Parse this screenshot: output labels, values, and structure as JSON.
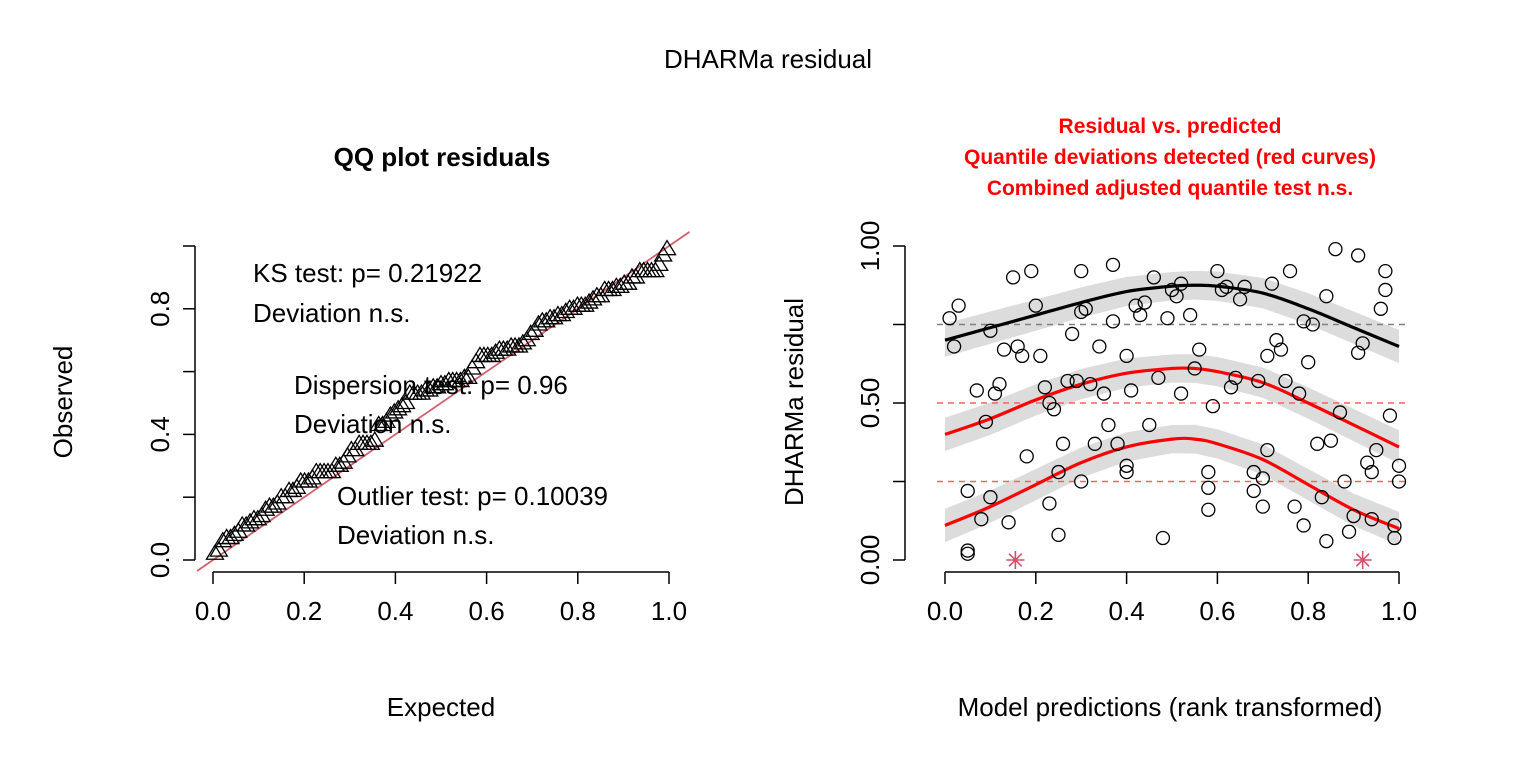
{
  "figure_title": "DHARMa residual",
  "chart_data": [
    {
      "type": "scatter",
      "title": "QQ plot residuals",
      "xlabel": "Expected",
      "ylabel": "Observed",
      "xlim": [
        0,
        1
      ],
      "ylim": [
        0,
        1
      ],
      "x_ticks": [
        "0.0",
        "0.2",
        "0.4",
        "0.6",
        "0.8",
        "1.0"
      ],
      "y_ticks": [
        "0.0",
        "0.4",
        "0.8"
      ],
      "annotations": [
        {
          "line1": "KS test: p= 0.21922",
          "line2": "Deviation  n.s."
        },
        {
          "line1": "Dispersion test: p= 0.96",
          "line2": "Deviation  n.s."
        },
        {
          "line1": "Outlier test: p= 0.10039",
          "line2": "Deviation  n.s."
        }
      ],
      "marker": "triangle",
      "reference_line": {
        "intercept": 0,
        "slope": 1,
        "color": "#d0606e"
      },
      "series_color": "#000000"
    },
    {
      "type": "scatter",
      "title_lines": [
        "Residual vs. predicted",
        "Quantile deviations detected (red curves)",
        "Combined adjusted quantile test n.s."
      ],
      "title_color": "#ff0000",
      "xlabel": "Model predictions (rank transformed)",
      "ylabel": "DHARMa residual",
      "xlim": [
        0,
        1
      ],
      "ylim": [
        0,
        1
      ],
      "x_ticks": [
        "0.0",
        "0.2",
        "0.4",
        "0.6",
        "0.8",
        "1.0"
      ],
      "y_ticks": [
        "0.00",
        "0.50",
        "1.00"
      ],
      "hlines": [
        0.25,
        0.5,
        0.75
      ],
      "points": [
        [
          0.01,
          0.77
        ],
        [
          0.02,
          0.68
        ],
        [
          0.03,
          0.81
        ],
        [
          0.05,
          0.22
        ],
        [
          0.05,
          0.03
        ],
        [
          0.05,
          0.02
        ],
        [
          0.07,
          0.54
        ],
        [
          0.08,
          0.13
        ],
        [
          0.09,
          0.44
        ],
        [
          0.1,
          0.73
        ],
        [
          0.1,
          0.2
        ],
        [
          0.11,
          0.53
        ],
        [
          0.12,
          0.56
        ],
        [
          0.13,
          0.67
        ],
        [
          0.14,
          0.12
        ],
        [
          0.15,
          0.9
        ],
        [
          0.16,
          0.68
        ],
        [
          0.17,
          0.65
        ],
        [
          0.18,
          0.33
        ],
        [
          0.19,
          0.92
        ],
        [
          0.2,
          0.81
        ],
        [
          0.21,
          0.65
        ],
        [
          0.22,
          0.55
        ],
        [
          0.23,
          0.5
        ],
        [
          0.23,
          0.18
        ],
        [
          0.24,
          0.48
        ],
        [
          0.25,
          0.28
        ],
        [
          0.25,
          0.08
        ],
        [
          0.26,
          0.37
        ],
        [
          0.27,
          0.57
        ],
        [
          0.28,
          0.72
        ],
        [
          0.29,
          0.57
        ],
        [
          0.3,
          0.25
        ],
        [
          0.3,
          0.79
        ],
        [
          0.3,
          0.92
        ],
        [
          0.31,
          0.8
        ],
        [
          0.32,
          0.56
        ],
        [
          0.33,
          0.37
        ],
        [
          0.34,
          0.68
        ],
        [
          0.35,
          0.53
        ],
        [
          0.36,
          0.43
        ],
        [
          0.37,
          0.94
        ],
        [
          0.37,
          0.76
        ],
        [
          0.38,
          0.37
        ],
        [
          0.4,
          0.3
        ],
        [
          0.4,
          0.28
        ],
        [
          0.4,
          0.65
        ],
        [
          0.41,
          0.54
        ],
        [
          0.42,
          0.81
        ],
        [
          0.43,
          0.78
        ],
        [
          0.44,
          0.82
        ],
        [
          0.45,
          0.43
        ],
        [
          0.46,
          0.9
        ],
        [
          0.47,
          0.58
        ],
        [
          0.48,
          0.07
        ],
        [
          0.49,
          0.77
        ],
        [
          0.5,
          0.86
        ],
        [
          0.51,
          0.84
        ],
        [
          0.52,
          0.53
        ],
        [
          0.52,
          0.88
        ],
        [
          0.54,
          0.78
        ],
        [
          0.55,
          0.61
        ],
        [
          0.56,
          0.67
        ],
        [
          0.58,
          0.28
        ],
        [
          0.58,
          0.23
        ],
        [
          0.58,
          0.16
        ],
        [
          0.59,
          0.49
        ],
        [
          0.6,
          0.92
        ],
        [
          0.61,
          0.86
        ],
        [
          0.62,
          0.87
        ],
        [
          0.63,
          0.55
        ],
        [
          0.64,
          0.58
        ],
        [
          0.65,
          0.83
        ],
        [
          0.66,
          0.87
        ],
        [
          0.68,
          0.28
        ],
        [
          0.68,
          0.22
        ],
        [
          0.69,
          0.57
        ],
        [
          0.7,
          0.17
        ],
        [
          0.7,
          0.26
        ],
        [
          0.71,
          0.35
        ],
        [
          0.71,
          0.65
        ],
        [
          0.72,
          0.88
        ],
        [
          0.73,
          0.7
        ],
        [
          0.74,
          0.67
        ],
        [
          0.75,
          0.57
        ],
        [
          0.76,
          0.92
        ],
        [
          0.77,
          0.17
        ],
        [
          0.78,
          0.53
        ],
        [
          0.79,
          0.76
        ],
        [
          0.79,
          0.11
        ],
        [
          0.8,
          0.63
        ],
        [
          0.81,
          0.75
        ],
        [
          0.82,
          0.37
        ],
        [
          0.83,
          0.2
        ],
        [
          0.84,
          0.06
        ],
        [
          0.84,
          0.84
        ],
        [
          0.85,
          0.38
        ],
        [
          0.86,
          0.99
        ],
        [
          0.87,
          0.47
        ],
        [
          0.88,
          0.25
        ],
        [
          0.89,
          0.09
        ],
        [
          0.9,
          0.14
        ],
        [
          0.91,
          0.97
        ],
        [
          0.91,
          0.66
        ],
        [
          0.92,
          0.69
        ],
        [
          0.93,
          0.31
        ],
        [
          0.94,
          0.28
        ],
        [
          0.94,
          0.13
        ],
        [
          0.95,
          0.35
        ],
        [
          0.96,
          0.8
        ],
        [
          0.97,
          0.86
        ],
        [
          0.97,
          0.92
        ],
        [
          0.98,
          0.46
        ],
        [
          0.99,
          0.07
        ],
        [
          0.99,
          0.11
        ],
        [
          1.0,
          0.25
        ],
        [
          1.0,
          0.3
        ]
      ],
      "outliers": [
        [
          0.155,
          0.0
        ],
        [
          0.92,
          0.0
        ]
      ],
      "quantile_curves": [
        {
          "q": 0.75,
          "color": "#000000",
          "x": [
            0.0,
            0.1,
            0.2,
            0.3,
            0.4,
            0.5,
            0.55,
            0.6,
            0.7,
            0.8,
            0.9,
            1.0
          ],
          "y": [
            0.7,
            0.74,
            0.78,
            0.82,
            0.855,
            0.872,
            0.875,
            0.872,
            0.85,
            0.8,
            0.74,
            0.68
          ]
        },
        {
          "q": 0.5,
          "color": "#ff0000",
          "x": [
            0.0,
            0.1,
            0.2,
            0.3,
            0.4,
            0.5,
            0.55,
            0.6,
            0.7,
            0.8,
            0.9,
            1.0
          ],
          "y": [
            0.4,
            0.45,
            0.51,
            0.56,
            0.595,
            0.61,
            0.61,
            0.6,
            0.565,
            0.5,
            0.43,
            0.36
          ]
        },
        {
          "q": 0.25,
          "color": "#ff0000",
          "x": [
            0.0,
            0.1,
            0.2,
            0.3,
            0.4,
            0.5,
            0.55,
            0.6,
            0.7,
            0.8,
            0.9,
            1.0
          ],
          "y": [
            0.11,
            0.17,
            0.24,
            0.31,
            0.36,
            0.385,
            0.385,
            0.37,
            0.32,
            0.24,
            0.16,
            0.1
          ]
        }
      ],
      "band_halfwidth": 0.045,
      "band_color": "#dcdcdc",
      "hline_colors": {
        "0.75": "#808080",
        "0.5": "#ff6060",
        "0.25": "#ff6060"
      },
      "outlier_color": "#d0506a"
    }
  ]
}
